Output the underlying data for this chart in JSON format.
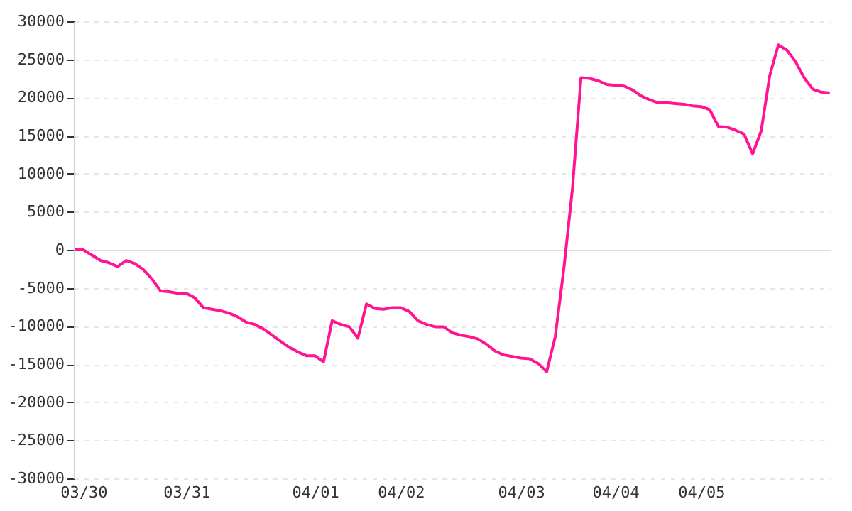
{
  "chart_data": {
    "type": "line",
    "grid": "y",
    "ylim": [
      -30000,
      30000
    ],
    "yticks": [
      -30000,
      -25000,
      -20000,
      -15000,
      -10000,
      -5000,
      0,
      5000,
      10000,
      15000,
      20000,
      25000,
      30000
    ],
    "categories": [
      null,
      "03/30",
      null,
      null,
      null,
      null,
      null,
      null,
      null,
      null,
      null,
      null,
      null,
      "03/31",
      null,
      null,
      null,
      null,
      null,
      null,
      null,
      null,
      null,
      null,
      null,
      null,
      null,
      null,
      "04/01",
      null,
      null,
      null,
      null,
      null,
      null,
      null,
      null,
      null,
      "04/02",
      null,
      null,
      null,
      null,
      null,
      null,
      null,
      null,
      null,
      null,
      null,
      null,
      null,
      "04/03",
      null,
      null,
      null,
      null,
      null,
      null,
      null,
      null,
      null,
      null,
      "04/04",
      null,
      null,
      null,
      null,
      null,
      null,
      null,
      null,
      null,
      "04/05",
      null,
      null,
      null,
      null,
      null,
      null,
      null,
      null,
      null,
      null,
      null,
      null,
      null,
      null,
      null
    ],
    "series": [
      {
        "color": "#ff1493",
        "values": [
          0,
          0,
          -700,
          -1400,
          -1700,
          -2200,
          -1400,
          -1800,
          -2600,
          -3800,
          -5400,
          -5500,
          -5700,
          -5700,
          -6300,
          -7600,
          -7800,
          -8000,
          -8300,
          -8800,
          -9500,
          -9800,
          -10400,
          -11200,
          -12000,
          -12800,
          -13400,
          -13900,
          -13900,
          -14700,
          -9300,
          -9800,
          -10100,
          -11600,
          -7100,
          -7700,
          -7800,
          -7600,
          -7600,
          -8100,
          -9300,
          -9800,
          -10100,
          -10100,
          -10900,
          -11200,
          -11400,
          -11700,
          -12400,
          -13300,
          -13800,
          -14000,
          -14200,
          -14300,
          -14900,
          -16000,
          -11400,
          -2500,
          8000,
          22600,
          22500,
          22200,
          21700,
          21600,
          21500,
          21000,
          20200,
          19700,
          19300,
          19300,
          19200,
          19100,
          18900,
          18800,
          18400,
          16200,
          16100,
          15700,
          15200,
          12600,
          15600,
          22900,
          26900,
          26200,
          24700,
          22600,
          21100,
          20700,
          20600
        ]
      }
    ]
  }
}
